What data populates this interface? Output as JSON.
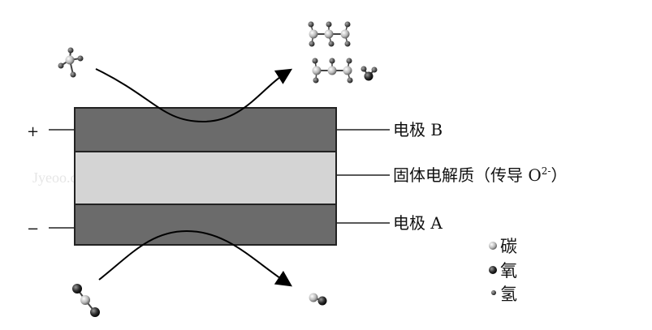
{
  "terminals": {
    "positive": "+",
    "negative": "−"
  },
  "labels": {
    "electrode_b": "电极 B",
    "electrolyte_main": "固体电解质（传导 O",
    "electrolyte_sup": "2-",
    "electrolyte_end": "）",
    "electrode_a": "电极 A"
  },
  "legend": [
    {
      "name": "碳",
      "symbol": "carbon"
    },
    {
      "name": "氧",
      "symbol": "oxygen"
    },
    {
      "name": "氢",
      "symbol": "hydrogen"
    }
  ],
  "watermark": "Jyeoo.com",
  "colors": {
    "electrode": "#6b6b6b",
    "electrolyte": "#d4d4d4",
    "outline": "#222222",
    "carbon": "#b8b8b8",
    "oxygen": "#2e2e2e",
    "hydrogen": "#555555"
  }
}
